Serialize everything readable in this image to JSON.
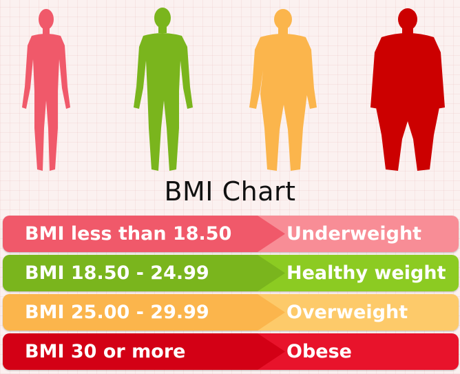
{
  "title": "BMI Chart",
  "figures": [
    {
      "name": "underweight-figure",
      "color": "#f0596a"
    },
    {
      "name": "healthy-figure",
      "color": "#7ab51d"
    },
    {
      "name": "overweight-figure",
      "color": "#fbb54c"
    },
    {
      "name": "obese-figure",
      "color": "#cc0000"
    }
  ],
  "rows": [
    {
      "range": "BMI less than 18.50",
      "category": "Underweight",
      "left_color": "#f0596a",
      "right_color": "#f88d96"
    },
    {
      "range": "BMI 18.50 - 24.99",
      "category": "Healthy weight",
      "left_color": "#7ab51d",
      "right_color": "#8ccb22"
    },
    {
      "range": "BMI 25.00 - 29.99",
      "category": "Overweight",
      "left_color": "#fbb54c",
      "right_color": "#fdca6a"
    },
    {
      "range": "BMI 30 or more",
      "category": "Obese",
      "left_color": "#d30015",
      "right_color": "#e8132b"
    }
  ]
}
